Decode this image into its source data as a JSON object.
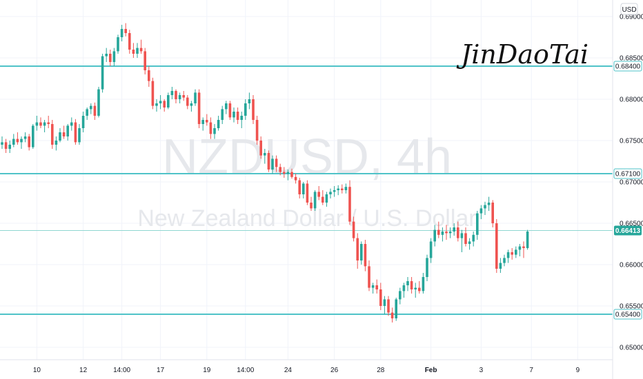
{
  "chart_data": {
    "type": "candlestick",
    "title": "NZDUSD, 4h",
    "subtitle": "New Zealand Dollar / U.S. Dollar",
    "currency": "USD",
    "signature": "JinDaoTai",
    "ylim": [
      0.6485,
      0.692
    ],
    "y_ticks": [
      "0.69000",
      "0.68500",
      "0.68000",
      "0.67500",
      "0.67000",
      "0.66500",
      "0.66000",
      "0.65500",
      "0.65000"
    ],
    "x_ticks": [
      {
        "label": "10",
        "bar": 9,
        "bold": false
      },
      {
        "label": "12",
        "bar": 21,
        "bold": false
      },
      {
        "label": "14:00",
        "bar": 31,
        "bold": false
      },
      {
        "label": "17",
        "bar": 41,
        "bold": false
      },
      {
        "label": "19",
        "bar": 53,
        "bold": false
      },
      {
        "label": "14:00",
        "bar": 63,
        "bold": false
      },
      {
        "label": "24",
        "bar": 74,
        "bold": false
      },
      {
        "label": "26",
        "bar": 86,
        "bold": false
      },
      {
        "label": "28",
        "bar": 98,
        "bold": false
      },
      {
        "label": "Feb",
        "bar": 111,
        "bold": true
      },
      {
        "label": "3",
        "bar": 124,
        "bold": false
      },
      {
        "label": "7",
        "bar": 137,
        "bold": false
      },
      {
        "label": "9",
        "bar": 149,
        "bold": false
      }
    ],
    "levels": [
      {
        "price": 0.684,
        "label": "0.68400"
      },
      {
        "price": 0.671,
        "label": "0.67100"
      },
      {
        "price": 0.654,
        "label": "0.65400"
      }
    ],
    "current_price": {
      "price": 0.66413,
      "label": "0.66413"
    },
    "colors": {
      "up": "#26a69a",
      "down": "#ef5350",
      "level": "#4fc3c8",
      "label_bg": "#26a69a"
    },
    "candles": [
      [
        0.6745,
        0.6755,
        0.674,
        0.6748
      ],
      [
        0.6748,
        0.6752,
        0.6735,
        0.674
      ],
      [
        0.674,
        0.675,
        0.6735,
        0.6745
      ],
      [
        0.6745,
        0.6758,
        0.6742,
        0.6752
      ],
      [
        0.6752,
        0.676,
        0.6745,
        0.6748
      ],
      [
        0.6748,
        0.6755,
        0.674,
        0.6752
      ],
      [
        0.6752,
        0.676,
        0.6748,
        0.6755
      ],
      [
        0.6755,
        0.6758,
        0.6738,
        0.6742
      ],
      [
        0.6742,
        0.677,
        0.674,
        0.6768
      ],
      [
        0.6768,
        0.678,
        0.6762,
        0.6772
      ],
      [
        0.6772,
        0.6778,
        0.6765,
        0.6768
      ],
      [
        0.6768,
        0.6775,
        0.676,
        0.6772
      ],
      [
        0.6772,
        0.678,
        0.6765,
        0.677
      ],
      [
        0.677,
        0.6775,
        0.674,
        0.6745
      ],
      [
        0.6745,
        0.6755,
        0.6738,
        0.675
      ],
      [
        0.675,
        0.6765,
        0.6748,
        0.676
      ],
      [
        0.676,
        0.6768,
        0.6752,
        0.6755
      ],
      [
        0.6755,
        0.677,
        0.675,
        0.6768
      ],
      [
        0.6768,
        0.6778,
        0.6762,
        0.6772
      ],
      [
        0.6772,
        0.6776,
        0.6745,
        0.6748
      ],
      [
        0.6748,
        0.677,
        0.6745,
        0.6765
      ],
      [
        0.6765,
        0.6785,
        0.676,
        0.678
      ],
      [
        0.678,
        0.679,
        0.6775,
        0.6788
      ],
      [
        0.6788,
        0.6795,
        0.6782,
        0.6792
      ],
      [
        0.6792,
        0.6796,
        0.6775,
        0.678
      ],
      [
        0.678,
        0.6815,
        0.6778,
        0.6812
      ],
      [
        0.6812,
        0.6855,
        0.6808,
        0.6852
      ],
      [
        0.6852,
        0.6862,
        0.6845,
        0.6855
      ],
      [
        0.6855,
        0.686,
        0.684,
        0.6845
      ],
      [
        0.6845,
        0.6862,
        0.684,
        0.6858
      ],
      [
        0.6858,
        0.6878,
        0.6855,
        0.6875
      ],
      [
        0.6875,
        0.689,
        0.687,
        0.6885
      ],
      [
        0.6885,
        0.6892,
        0.6876,
        0.688
      ],
      [
        0.688,
        0.6884,
        0.6855,
        0.686
      ],
      [
        0.686,
        0.6868,
        0.685,
        0.6855
      ],
      [
        0.6855,
        0.6868,
        0.685,
        0.6862
      ],
      [
        0.6862,
        0.6872,
        0.6855,
        0.6858
      ],
      [
        0.6858,
        0.6862,
        0.683,
        0.6835
      ],
      [
        0.6835,
        0.684,
        0.6815,
        0.6822
      ],
      [
        0.6822,
        0.6826,
        0.6788,
        0.6792
      ],
      [
        0.6792,
        0.68,
        0.6785,
        0.6795
      ],
      [
        0.6795,
        0.6805,
        0.6788,
        0.6798
      ],
      [
        0.6798,
        0.68,
        0.6785,
        0.679
      ],
      [
        0.679,
        0.6808,
        0.6788,
        0.6805
      ],
      [
        0.6805,
        0.6815,
        0.68,
        0.681
      ],
      [
        0.681,
        0.6812,
        0.6795,
        0.68
      ],
      [
        0.68,
        0.6808,
        0.6795,
        0.6805
      ],
      [
        0.6805,
        0.681,
        0.6798,
        0.6802
      ],
      [
        0.6802,
        0.6805,
        0.6788,
        0.6792
      ],
      [
        0.6792,
        0.6798,
        0.6785,
        0.6795
      ],
      [
        0.6795,
        0.6812,
        0.6792,
        0.6808
      ],
      [
        0.6808,
        0.6812,
        0.6765,
        0.677
      ],
      [
        0.677,
        0.6778,
        0.6762,
        0.6775
      ],
      [
        0.6775,
        0.6782,
        0.6768,
        0.6772
      ],
      [
        0.6772,
        0.6778,
        0.6752,
        0.6758
      ],
      [
        0.6758,
        0.677,
        0.6752,
        0.6765
      ],
      [
        0.6765,
        0.678,
        0.6762,
        0.6775
      ],
      [
        0.6775,
        0.6792,
        0.677,
        0.6788
      ],
      [
        0.6788,
        0.6798,
        0.6782,
        0.6795
      ],
      [
        0.6795,
        0.6798,
        0.6775,
        0.6778
      ],
      [
        0.6778,
        0.679,
        0.6772,
        0.6785
      ],
      [
        0.6785,
        0.679,
        0.677,
        0.6775
      ],
      [
        0.6775,
        0.6785,
        0.6765,
        0.678
      ],
      [
        0.678,
        0.68,
        0.6775,
        0.6795
      ],
      [
        0.6795,
        0.6808,
        0.6788,
        0.68
      ],
      [
        0.68,
        0.6805,
        0.677,
        0.6775
      ],
      [
        0.6775,
        0.678,
        0.6745,
        0.675
      ],
      [
        0.675,
        0.6755,
        0.6728,
        0.6732
      ],
      [
        0.6732,
        0.674,
        0.6722,
        0.6735
      ],
      [
        0.6735,
        0.6738,
        0.6712,
        0.6715
      ],
      [
        0.6715,
        0.6732,
        0.671,
        0.6728
      ],
      [
        0.6728,
        0.6732,
        0.6712,
        0.6718
      ],
      [
        0.6718,
        0.6722,
        0.6708,
        0.6712
      ],
      [
        0.6712,
        0.6718,
        0.6705,
        0.671
      ],
      [
        0.671,
        0.6715,
        0.6702,
        0.6712
      ],
      [
        0.6712,
        0.6716,
        0.6704,
        0.6706
      ],
      [
        0.6706,
        0.671,
        0.6698,
        0.6702
      ],
      [
        0.6702,
        0.6705,
        0.668,
        0.6685
      ],
      [
        0.6685,
        0.67,
        0.668,
        0.6698
      ],
      [
        0.6698,
        0.6702,
        0.6672,
        0.6675
      ],
      [
        0.6675,
        0.6682,
        0.6665,
        0.6668
      ],
      [
        0.6668,
        0.669,
        0.6665,
        0.6688
      ],
      [
        0.6688,
        0.6695,
        0.6678,
        0.6682
      ],
      [
        0.6682,
        0.669,
        0.6672,
        0.6675
      ],
      [
        0.6675,
        0.6688,
        0.667,
        0.6685
      ],
      [
        0.6685,
        0.6692,
        0.668,
        0.6688
      ],
      [
        0.6688,
        0.6695,
        0.6682,
        0.669
      ],
      [
        0.669,
        0.6696,
        0.6684,
        0.6692
      ],
      [
        0.6692,
        0.6697,
        0.6686,
        0.669
      ],
      [
        0.669,
        0.6698,
        0.6686,
        0.6694
      ],
      [
        0.6694,
        0.6702,
        0.6648,
        0.6652
      ],
      [
        0.6652,
        0.6658,
        0.6628,
        0.6632
      ],
      [
        0.6632,
        0.6638,
        0.6595,
        0.6605
      ],
      [
        0.6605,
        0.6628,
        0.66,
        0.6625
      ],
      [
        0.6625,
        0.663,
        0.6592,
        0.6598
      ],
      [
        0.6598,
        0.6605,
        0.6568,
        0.6572
      ],
      [
        0.6572,
        0.6578,
        0.6565,
        0.6575
      ],
      [
        0.6575,
        0.6582,
        0.6565,
        0.657
      ],
      [
        0.657,
        0.6578,
        0.6545,
        0.655
      ],
      [
        0.655,
        0.6562,
        0.654,
        0.6558
      ],
      [
        0.6558,
        0.6562,
        0.6538,
        0.6542
      ],
      [
        0.6542,
        0.6548,
        0.653,
        0.6535
      ],
      [
        0.6535,
        0.656,
        0.6532,
        0.6558
      ],
      [
        0.6558,
        0.6572,
        0.6552,
        0.6568
      ],
      [
        0.6568,
        0.6578,
        0.656,
        0.6575
      ],
      [
        0.6575,
        0.6585,
        0.6568,
        0.658
      ],
      [
        0.658,
        0.6585,
        0.6565,
        0.657
      ],
      [
        0.657,
        0.6578,
        0.656,
        0.6572
      ],
      [
        0.6572,
        0.658,
        0.6565,
        0.6568
      ],
      [
        0.6568,
        0.659,
        0.6565,
        0.6585
      ],
      [
        0.6585,
        0.6612,
        0.658,
        0.6608
      ],
      [
        0.6608,
        0.6632,
        0.6602,
        0.6628
      ],
      [
        0.6628,
        0.6648,
        0.6622,
        0.6642
      ],
      [
        0.6642,
        0.6652,
        0.6632,
        0.6636
      ],
      [
        0.6636,
        0.6645,
        0.6628,
        0.664
      ],
      [
        0.664,
        0.6648,
        0.663,
        0.6638
      ],
      [
        0.6638,
        0.6645,
        0.6632,
        0.664
      ],
      [
        0.664,
        0.665,
        0.6635,
        0.6645
      ],
      [
        0.6645,
        0.6652,
        0.6628,
        0.6632
      ],
      [
        0.6632,
        0.6642,
        0.6615,
        0.6638
      ],
      [
        0.6638,
        0.6645,
        0.6622,
        0.6625
      ],
      [
        0.6625,
        0.6632,
        0.6618,
        0.6628
      ],
      [
        0.6628,
        0.664,
        0.6622,
        0.6636
      ],
      [
        0.6636,
        0.6665,
        0.663,
        0.6662
      ],
      [
        0.6662,
        0.6672,
        0.6655,
        0.6668
      ],
      [
        0.6668,
        0.6676,
        0.666,
        0.6672
      ],
      [
        0.6672,
        0.6682,
        0.6665,
        0.6675
      ],
      [
        0.6675,
        0.6678,
        0.6645,
        0.665
      ],
      [
        0.665,
        0.6655,
        0.659,
        0.6595
      ],
      [
        0.6595,
        0.6608,
        0.659,
        0.6602
      ],
      [
        0.6602,
        0.6612,
        0.6598,
        0.6608
      ],
      [
        0.6608,
        0.6618,
        0.6602,
        0.6615
      ],
      [
        0.6615,
        0.662,
        0.6606,
        0.6612
      ],
      [
        0.6612,
        0.6622,
        0.6608,
        0.6618
      ],
      [
        0.6618,
        0.6625,
        0.661,
        0.6622
      ],
      [
        0.6622,
        0.6628,
        0.6608,
        0.662
      ],
      [
        0.662,
        0.6642,
        0.6618,
        0.664
      ]
    ]
  }
}
